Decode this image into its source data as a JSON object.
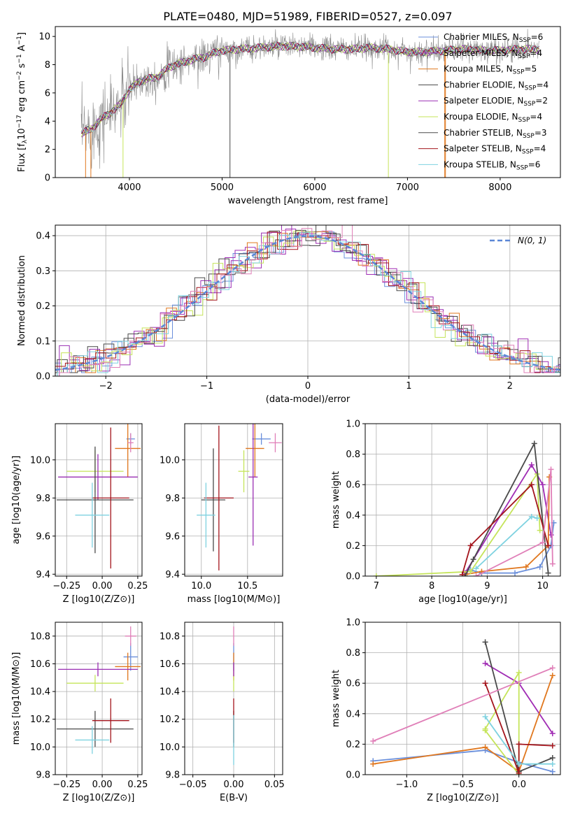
{
  "figure": {
    "title": "PLATE=0480, MJD=51989, FIBERID=0527, z=0.097"
  },
  "colors": {
    "Chabrier MILES": "#6a8fdb",
    "Salpeter MILES": "#a02cb4",
    "Kroupa MILES": "#e0771e",
    "Chabrier ELODIE": "#474747",
    "Salpeter ELODIE": "#9a2fb3",
    "Kroupa ELODIE": "#c5e45a",
    "Chabrier STELIB": "#4a4a4a",
    "Salpeter STELIB": "#a3141c",
    "Kroupa STELIB": "#7ed2e0",
    "pink": "#e07fb8",
    "data": "#8c8c8c",
    "normal": "#5b87d6"
  },
  "chart_data": [
    {
      "type": "line",
      "title": "PLATE=0480, MJD=51989, FIBERID=0527, z=0.097",
      "xlabel": "wavelength [Angstrom, rest frame]",
      "ylabel": "Flux [f_λ 10^-17 erg cm^-2 s^-1 A^-1]",
      "xlim": [
        3200,
        8650
      ],
      "ylim": [
        0,
        10.7
      ],
      "xticks": [
        4000,
        5000,
        6000,
        7000,
        8000
      ],
      "yticks": [
        0,
        2,
        4,
        6,
        8,
        10
      ],
      "continuum": {
        "x": [
          3480,
          3600,
          3700,
          3800,
          3900,
          4000,
          4100,
          4200,
          4300,
          4400,
          4500,
          4600,
          4700,
          4800,
          4900,
          5000,
          5200,
          5400,
          5600,
          5800,
          6000,
          6200,
          6400,
          6600,
          6800,
          7000,
          7200,
          7400,
          7600,
          7800,
          8000,
          8200,
          8400
        ],
        "y": [
          3.1,
          3.5,
          4.2,
          4.6,
          5.2,
          6.2,
          6.8,
          7.0,
          7.1,
          7.7,
          8.0,
          8.2,
          8.4,
          8.5,
          8.8,
          9.0,
          9.1,
          9.2,
          9.3,
          9.3,
          9.2,
          9.1,
          9.1,
          9.2,
          9.1,
          8.9,
          8.9,
          9.0,
          9.1,
          9.0,
          9.0,
          9.1,
          9.1
        ]
      },
      "legend": [
        {
          "label": "Chabrier MILES, N",
          "sub": "SSP",
          "value": "=6"
        },
        {
          "label": "Salpeter MILES, N",
          "sub": "SSP",
          "value": "=4"
        },
        {
          "label": "Kroupa MILES, N",
          "sub": "SSP",
          "value": "=5"
        },
        {
          "label": "Chabrier ELODIE, N",
          "sub": "SSP",
          "value": "=4"
        },
        {
          "label": "Salpeter ELODIE, N",
          "sub": "SSP",
          "value": "=2"
        },
        {
          "label": "Kroupa ELODIE, N",
          "sub": "SSP",
          "value": "=4"
        },
        {
          "label": "Chabrier STELIB, N",
          "sub": "SSP",
          "value": "=3"
        },
        {
          "label": "Salpeter STELIB, N",
          "sub": "SSP",
          "value": "=4"
        },
        {
          "label": "Kroupa STELIB, N",
          "sub": "SSP",
          "value": "=6"
        }
      ],
      "legend_position": "top-right"
    },
    {
      "type": "histogram",
      "xlabel": "(data-model)/error",
      "ylabel": "Normed distribution",
      "xlim": [
        -2.5,
        2.5
      ],
      "ylim": [
        0,
        0.43
      ],
      "xticks": [
        -2,
        -1,
        0,
        1,
        2
      ],
      "yticks": [
        0.0,
        0.1,
        0.2,
        0.3,
        0.4
      ],
      "bin_width": 0.1,
      "legend": [
        {
          "label": "N(0, 1)",
          "style": "dashed"
        }
      ],
      "legend_position": "top-right"
    },
    {
      "type": "scatter",
      "xlabel": "Z [log10(Z/Z⊙)]",
      "ylabel": "age  [log10(age/yr)]",
      "xlim": [
        -0.33,
        0.28
      ],
      "ylim": [
        9.39,
        10.19
      ],
      "xticks": [
        -0.25,
        0.0,
        0.25
      ],
      "yticks": [
        9.4,
        9.6,
        9.8,
        10.0
      ],
      "points": [
        {
          "model": "Chabrier MILES",
          "x": 0.2,
          "y": 10.11,
          "xerr": 0.03,
          "yerr": 0.03
        },
        {
          "model": "Kroupa MILES",
          "x": 0.18,
          "y": 10.06,
          "xerr": 0.09,
          "yerr": 0.15
        },
        {
          "model": "Kroupa ELODIE",
          "x": -0.05,
          "y": 9.94,
          "xerr": 0.2,
          "yerr": 0.11
        },
        {
          "model": "Salpeter ELODIE",
          "x": -0.03,
          "y": 9.91,
          "xerr": 0.28,
          "yerr": 0.12
        },
        {
          "model": "Chabrier STELIB",
          "x": -0.05,
          "y": 9.79,
          "xerr": 0.27,
          "yerr": 0.28
        },
        {
          "model": "Salpeter STELIB",
          "x": 0.06,
          "y": 9.8,
          "xerr": 0.13,
          "yerr": 0.37
        },
        {
          "model": "Kroupa STELIB",
          "x": -0.07,
          "y": 9.71,
          "xerr": 0.12,
          "yerr": 0.17
        },
        {
          "model": "pink",
          "x": 0.2,
          "y": 10.09,
          "xerr": 0.02,
          "yerr": 0.05
        }
      ]
    },
    {
      "type": "scatter",
      "xlabel": "mass [log10(M/M⊙)]",
      "xlim": [
        9.82,
        10.88
      ],
      "ylim": [
        9.39,
        10.19
      ],
      "xticks": [
        10.0,
        10.5
      ],
      "yticks": [
        9.4,
        9.6,
        9.8,
        10.0
      ],
      "points": [
        {
          "model": "Chabrier MILES",
          "x": 10.65,
          "y": 10.11,
          "xerr": 0.1,
          "yerr": 0.03
        },
        {
          "model": "Kroupa MILES",
          "x": 10.58,
          "y": 10.06,
          "xerr": 0.1,
          "yerr": 0.15
        },
        {
          "model": "Kroupa ELODIE",
          "x": 10.46,
          "y": 9.94,
          "xerr": 0.06,
          "yerr": 0.11
        },
        {
          "model": "Salpeter ELODIE",
          "x": 10.56,
          "y": 9.91,
          "xerr": 0.05,
          "yerr": 0.36
        },
        {
          "model": "Chabrier STELIB",
          "x": 10.13,
          "y": 9.79,
          "xerr": 0.13,
          "yerr": 0.27
        },
        {
          "model": "Salpeter STELIB",
          "x": 10.19,
          "y": 9.8,
          "xerr": 0.16,
          "yerr": 0.38
        },
        {
          "model": "Kroupa STELIB",
          "x": 10.05,
          "y": 9.71,
          "xerr": 0.1,
          "yerr": 0.17
        },
        {
          "model": "pink",
          "x": 10.8,
          "y": 10.09,
          "xerr": 0.07,
          "yerr": 0.05
        }
      ]
    },
    {
      "type": "line",
      "xlabel": "age  [log10(age/yr)]",
      "ylabel": "mass weight",
      "xlim": [
        6.8,
        10.32
      ],
      "ylim": [
        0,
        1.0
      ],
      "xticks": [
        7,
        8,
        9,
        10
      ],
      "yticks": [
        0.0,
        0.2,
        0.4,
        0.6,
        0.8,
        1.0
      ],
      "series": [
        {
          "model": "Chabrier MILES",
          "x": [
            8.7,
            8.9,
            9.5,
            9.95,
            10.15,
            10.2
          ],
          "y": [
            0.04,
            0.02,
            0.02,
            0.06,
            0.2,
            0.35
          ]
        },
        {
          "model": "Salpeter MILES",
          "x": [
            8.6,
            9.8,
            10.0,
            10.15
          ],
          "y": [
            0.02,
            0.73,
            0.6,
            0.27
          ]
        },
        {
          "model": "Kroupa MILES",
          "x": [
            8.6,
            8.9,
            9.7,
            10.1,
            10.12
          ],
          "y": [
            0.01,
            0.03,
            0.06,
            0.2,
            0.65
          ]
        },
        {
          "model": "Kroupa ELODIE",
          "x": [
            7.0,
            8.7,
            9.9,
            9.95
          ],
          "y": [
            0.0,
            0.03,
            0.67,
            0.3
          ]
        },
        {
          "model": "Chabrier STELIB",
          "x": [
            8.6,
            8.75,
            9.85,
            10.1
          ],
          "y": [
            0.0,
            0.11,
            0.87,
            0.02
          ]
        },
        {
          "model": "Salpeter STELIB",
          "x": [
            8.55,
            8.7,
            9.8,
            10.1
          ],
          "y": [
            0.01,
            0.2,
            0.6,
            0.2
          ]
        },
        {
          "model": "Kroupa STELIB",
          "x": [
            8.8,
            9.8,
            9.9
          ],
          "y": [
            0.05,
            0.39,
            0.38
          ]
        },
        {
          "model": "pink",
          "x": [
            8.8,
            10.0,
            10.15,
            10.18
          ],
          "y": [
            0.0,
            0.22,
            0.7,
            0.08
          ]
        }
      ]
    },
    {
      "type": "scatter",
      "xlabel": "Z [log10(Z/Z⊙)]",
      "ylabel": "mass [log10(M/M⊙)]",
      "xlim": [
        -0.33,
        0.28
      ],
      "ylim": [
        9.8,
        10.9
      ],
      "xticks": [
        -0.25,
        0.0,
        0.25
      ],
      "yticks": [
        9.8,
        10.0,
        10.2,
        10.4,
        10.6,
        10.8
      ],
      "points": [
        {
          "model": "Chabrier MILES",
          "x": 0.2,
          "y": 10.65,
          "xerr": 0.05,
          "yerr": 0.1
        },
        {
          "model": "Kroupa MILES",
          "x": 0.18,
          "y": 10.58,
          "xerr": 0.09,
          "yerr": 0.1
        },
        {
          "model": "Kroupa ELODIE",
          "x": -0.05,
          "y": 10.46,
          "xerr": 0.2,
          "yerr": 0.06
        },
        {
          "model": "Salpeter ELODIE",
          "x": -0.03,
          "y": 10.56,
          "xerr": 0.28,
          "yerr": 0.05
        },
        {
          "model": "Chabrier STELIB",
          "x": -0.05,
          "y": 10.13,
          "xerr": 0.27,
          "yerr": 0.13
        },
        {
          "model": "Salpeter STELIB",
          "x": 0.06,
          "y": 10.19,
          "xerr": 0.13,
          "yerr": 0.16
        },
        {
          "model": "Kroupa STELIB",
          "x": -0.07,
          "y": 10.05,
          "xerr": 0.12,
          "yerr": 0.1
        },
        {
          "model": "pink",
          "x": 0.2,
          "y": 10.8,
          "xerr": 0.04,
          "yerr": 0.07
        }
      ]
    },
    {
      "type": "scatter",
      "xlabel": "E(B-V)",
      "xlim": [
        -0.06,
        0.06
      ],
      "ylim": [
        9.8,
        10.9
      ],
      "xticks": [
        -0.05,
        0.0,
        0.05
      ],
      "yticks": [
        9.8,
        10.0,
        10.2,
        10.4,
        10.6,
        10.8
      ],
      "points": [
        {
          "model": "Chabrier MILES",
          "x": 0.0,
          "y": 10.65,
          "yerr": 0.1
        },
        {
          "model": "Kroupa MILES",
          "x": 0.0,
          "y": 10.58,
          "yerr": 0.1
        },
        {
          "model": "Kroupa ELODIE",
          "x": 0.0,
          "y": 10.46,
          "yerr": 0.06
        },
        {
          "model": "Salpeter ELODIE",
          "x": 0.0,
          "y": 10.56,
          "yerr": 0.05
        },
        {
          "model": "Chabrier STELIB",
          "x": 0.0,
          "y": 10.13,
          "yerr": 0.13
        },
        {
          "model": "Salpeter STELIB",
          "x": 0.0,
          "y": 10.19,
          "yerr": 0.16
        },
        {
          "model": "Kroupa STELIB",
          "x": 0.0,
          "y": 10.05,
          "yerr": 0.18
        },
        {
          "model": "pink",
          "x": 0.0,
          "y": 10.8,
          "yerr": 0.07
        }
      ]
    },
    {
      "type": "line",
      "xlabel": "Z [log10(Z/Z⊙)]",
      "ylabel": "mass weight",
      "xlim": [
        -1.37,
        0.37
      ],
      "ylim": [
        0,
        1.0
      ],
      "xticks": [
        -1.0,
        -0.5,
        0.0
      ],
      "yticks": [
        0.0,
        0.2,
        0.4,
        0.6,
        0.8,
        1.0
      ],
      "series": [
        {
          "model": "Chabrier MILES",
          "x": [
            -1.3,
            -0.3,
            0.0,
            0.3
          ],
          "y": [
            0.09,
            0.16,
            0.08,
            0.02
          ]
        },
        {
          "model": "Salpeter MILES",
          "x": [
            -0.3,
            0.0,
            0.3
          ],
          "y": [
            0.73,
            0.6,
            0.27
          ]
        },
        {
          "model": "Kroupa MILES",
          "x": [
            -1.3,
            -0.3,
            0.0,
            0.3
          ],
          "y": [
            0.07,
            0.18,
            0.02,
            0.65
          ]
        },
        {
          "model": "Kroupa ELODIE",
          "x": [
            -0.3,
            0.0,
            0.0,
            -0.3
          ],
          "y": [
            0.3,
            0.67,
            0.0,
            0.29
          ]
        },
        {
          "model": "Chabrier STELIB",
          "x": [
            -0.3,
            0.0,
            0.3
          ],
          "y": [
            0.87,
            0.02,
            0.11
          ]
        },
        {
          "model": "Salpeter STELIB",
          "x": [
            -0.3,
            0.0,
            0.0,
            0.3
          ],
          "y": [
            0.6,
            0.01,
            0.2,
            0.19
          ]
        },
        {
          "model": "Kroupa STELIB",
          "x": [
            -0.3,
            0.0,
            0.3
          ],
          "y": [
            0.38,
            0.07,
            0.07
          ]
        },
        {
          "model": "pink",
          "x": [
            -1.3,
            0.3
          ],
          "y": [
            0.22,
            0.7
          ]
        }
      ]
    }
  ]
}
